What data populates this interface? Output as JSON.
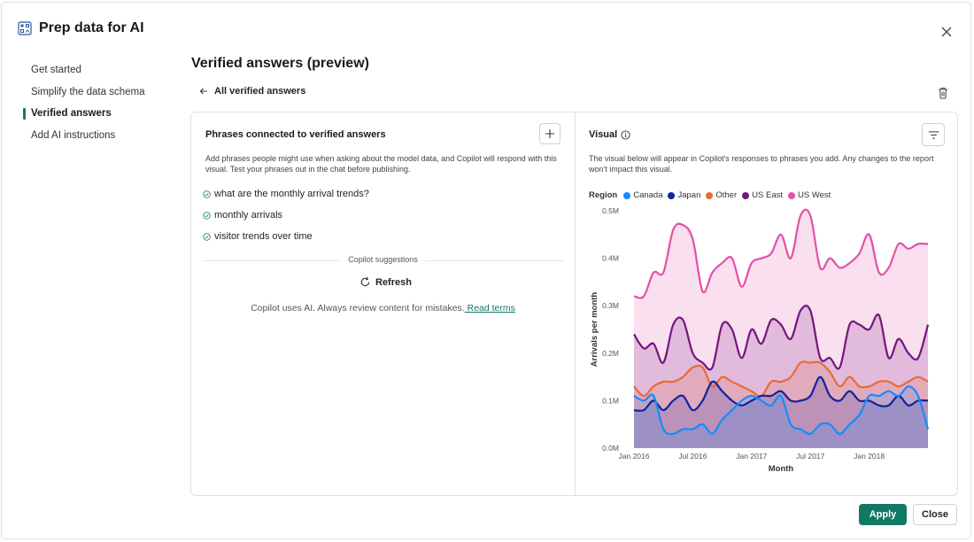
{
  "dialog": {
    "title": "Prep data for AI",
    "icon": "prep-data-icon"
  },
  "nav": {
    "items": [
      {
        "label": "Get started",
        "active": false
      },
      {
        "label": "Simplify the data schema",
        "active": false
      },
      {
        "label": "Verified answers",
        "active": true
      },
      {
        "label": "Add AI instructions",
        "active": false
      }
    ]
  },
  "main": {
    "title": "Verified answers (preview)",
    "back_label": "All verified answers"
  },
  "phrases_panel": {
    "title": "Phrases connected to verified answers",
    "description": "Add phrases people might use when asking about the model data, and Copilot will respond with this visual. Test your phrases out in the chat before publishing.",
    "phrases": [
      "what are the monthly arrival trends?",
      "monthly arrivals",
      "visitor trends over time"
    ],
    "suggestions_label": "Copilot suggestions",
    "refresh_label": "Refresh",
    "disclaimer": "Copilot uses AI. Always review content for mistakes.",
    "read_terms": " Read terms"
  },
  "visual_panel": {
    "title": "Visual",
    "description": "The visual below will appear in Copilot's responses to phrases you add. Any changes to the report won't impact this visual."
  },
  "chart_data": {
    "type": "area",
    "legend_title": "Region",
    "legend_position": "top-left",
    "xlabel": "Month",
    "ylabel": "Arrivals per month",
    "ylim": [
      0,
      0.5
    ],
    "y_unit": "M",
    "y_ticks": [
      "0.0M",
      "0.1M",
      "0.2M",
      "0.3M",
      "0.4M",
      "0.5M"
    ],
    "x_ticks": [
      "Jan 2016",
      "Jul 2016",
      "Jan 2017",
      "Jul 2017",
      "Jan 2018"
    ],
    "x": [
      "2016-01",
      "2016-02",
      "2016-03",
      "2016-04",
      "2016-05",
      "2016-06",
      "2016-07",
      "2016-08",
      "2016-09",
      "2016-10",
      "2016-11",
      "2016-12",
      "2017-01",
      "2017-02",
      "2017-03",
      "2017-04",
      "2017-05",
      "2017-06",
      "2017-07",
      "2017-08",
      "2017-09",
      "2017-10",
      "2017-11",
      "2017-12",
      "2018-01",
      "2018-02",
      "2018-03",
      "2018-04",
      "2018-05",
      "2018-06",
      "2018-07"
    ],
    "grid": false,
    "series": [
      {
        "name": "US West",
        "color": "#e44fa9",
        "values": [
          0.32,
          0.32,
          0.37,
          0.37,
          0.46,
          0.47,
          0.44,
          0.33,
          0.37,
          0.39,
          0.4,
          0.34,
          0.39,
          0.4,
          0.41,
          0.45,
          0.4,
          0.49,
          0.49,
          0.38,
          0.4,
          0.38,
          0.39,
          0.41,
          0.45,
          0.37,
          0.38,
          0.43,
          0.42,
          0.43,
          0.43
        ]
      },
      {
        "name": "US East",
        "color": "#72167f",
        "values": [
          0.24,
          0.21,
          0.22,
          0.18,
          0.26,
          0.27,
          0.2,
          0.18,
          0.17,
          0.26,
          0.25,
          0.19,
          0.25,
          0.22,
          0.27,
          0.26,
          0.23,
          0.29,
          0.29,
          0.19,
          0.19,
          0.17,
          0.26,
          0.26,
          0.25,
          0.28,
          0.19,
          0.23,
          0.2,
          0.19,
          0.26
        ]
      },
      {
        "name": "Other",
        "color": "#e66c37",
        "values": [
          0.13,
          0.11,
          0.13,
          0.14,
          0.14,
          0.15,
          0.17,
          0.17,
          0.13,
          0.15,
          0.14,
          0.13,
          0.12,
          0.11,
          0.14,
          0.14,
          0.15,
          0.18,
          0.18,
          0.18,
          0.16,
          0.13,
          0.15,
          0.13,
          0.13,
          0.14,
          0.14,
          0.13,
          0.14,
          0.15,
          0.14
        ]
      },
      {
        "name": "Japan",
        "color": "#12239e",
        "values": [
          0.08,
          0.08,
          0.1,
          0.08,
          0.1,
          0.11,
          0.08,
          0.1,
          0.14,
          0.12,
          0.1,
          0.09,
          0.1,
          0.11,
          0.11,
          0.12,
          0.1,
          0.1,
          0.11,
          0.15,
          0.11,
          0.1,
          0.12,
          0.1,
          0.1,
          0.09,
          0.09,
          0.11,
          0.09,
          0.1,
          0.1
        ]
      },
      {
        "name": "Canada",
        "color": "#118dff",
        "values": [
          0.11,
          0.1,
          0.11,
          0.04,
          0.03,
          0.04,
          0.04,
          0.05,
          0.03,
          0.06,
          0.08,
          0.1,
          0.11,
          0.1,
          0.09,
          0.11,
          0.05,
          0.04,
          0.03,
          0.05,
          0.05,
          0.03,
          0.05,
          0.07,
          0.11,
          0.11,
          0.12,
          0.11,
          0.13,
          0.11,
          0.04
        ]
      }
    ]
  },
  "legend_order": [
    "Canada",
    "Japan",
    "Other",
    "US East",
    "US West"
  ],
  "footer": {
    "apply_label": "Apply",
    "close_label": "Close"
  }
}
